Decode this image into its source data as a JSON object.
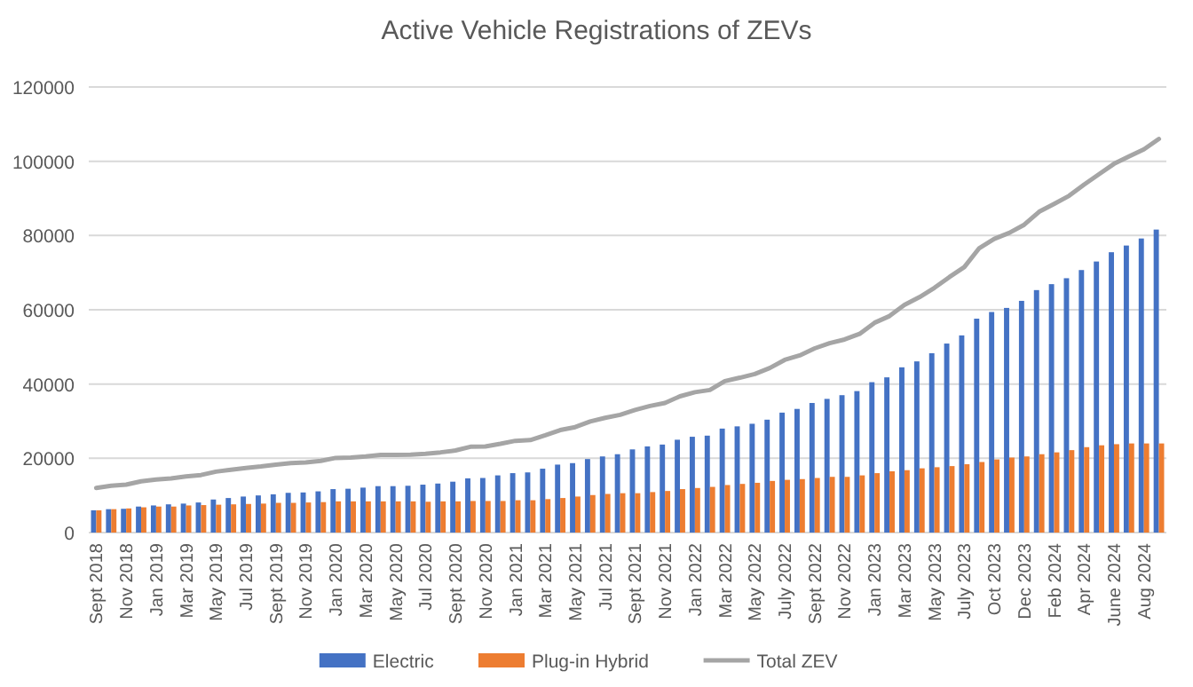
{
  "chart_data": {
    "type": "bar",
    "title": "Active Vehicle Registrations of ZEVs",
    "categories": [
      "Sept 2018",
      null,
      "Nov 2018",
      null,
      "Jan 2019",
      null,
      "Mar 2019",
      null,
      "May 2019",
      null,
      "Jul 2019",
      null,
      "Sept 2019",
      null,
      "Nov 2019",
      null,
      "Jan 2020",
      null,
      "Mar 2020",
      null,
      "May 2020",
      null,
      "Jul 2020",
      null,
      "Sept 2020",
      null,
      "Nov 2020",
      null,
      "Jan 2021",
      null,
      "Mar 2021",
      null,
      "May 2021",
      null,
      "Jul 2021",
      null,
      "Sept 2021",
      null,
      "Nov 2021",
      null,
      "Jan 2022",
      null,
      "Mar 2022",
      null,
      "May 2022",
      null,
      "July 2022",
      null,
      "Sept 2022",
      null,
      "Nov 2022",
      null,
      "Jan 2023",
      null,
      "Mar 2023",
      null,
      "May 2023",
      null,
      "July 2023",
      null,
      "Oct 2023",
      null,
      "Dec 2023",
      null,
      "Feb 2024",
      null,
      "Apr 2024",
      null,
      "June 2024",
      null,
      "Aug 2024",
      null
    ],
    "series": [
      {
        "name": "Electric",
        "color": "#4472c4",
        "values": [
          6000,
          6300,
          6400,
          7000,
          7300,
          7600,
          7800,
          8100,
          8900,
          9300,
          9700,
          10000,
          10300,
          10700,
          10800,
          11100,
          11700,
          11800,
          12100,
          12500,
          12500,
          12600,
          12900,
          13200,
          13700,
          14600,
          14700,
          15400,
          16000,
          16200,
          17200,
          18300,
          18700,
          19800,
          20500,
          21100,
          22400,
          23200,
          23700,
          25000,
          25800,
          26100,
          28000,
          28600,
          29300,
          30400,
          32300,
          33300,
          34900,
          36000,
          37000,
          38100,
          40500,
          41800,
          44500,
          46100,
          48300,
          50900,
          53100,
          57600,
          59400,
          60500,
          62400,
          65300,
          66900,
          68500,
          70700,
          73000,
          75500,
          77300,
          79200,
          81600
        ]
      },
      {
        "name": "Plug-in Hybrid",
        "color": "#ed7d31",
        "values": [
          6000,
          6300,
          6500,
          6800,
          7000,
          7000,
          7300,
          7400,
          7500,
          7600,
          7700,
          7800,
          8000,
          8000,
          8100,
          8200,
          8400,
          8400,
          8400,
          8400,
          8400,
          8400,
          8300,
          8400,
          8400,
          8500,
          8500,
          8500,
          8700,
          8700,
          9000,
          9300,
          9700,
          10100,
          10400,
          10600,
          10600,
          10900,
          11200,
          11700,
          12000,
          12300,
          12800,
          13100,
          13400,
          13900,
          14200,
          14400,
          14700,
          15000,
          15000,
          15400,
          16000,
          16500,
          16800,
          17300,
          17600,
          17900,
          18400,
          19000,
          19700,
          20200,
          20500,
          21100,
          21600,
          22200,
          23000,
          23500,
          23800,
          24000,
          24000,
          24000
        ]
      },
      {
        "name": "Total ZEV",
        "type": "line",
        "color": "#a5a5a5",
        "values": [
          12000,
          12600,
          12900,
          13800,
          14300,
          14600,
          15100,
          15500,
          16400,
          16900,
          17400,
          17800,
          18300,
          18700,
          18900,
          19300,
          20100,
          20200,
          20500,
          20900,
          20900,
          21000,
          21200,
          21600,
          22100,
          23100,
          23200,
          23900,
          24700,
          24900,
          26200,
          27600,
          28400,
          29900,
          30900,
          31700,
          33000,
          34100,
          34900,
          36700,
          37800,
          38400,
          40800,
          41700,
          42700,
          44300,
          46500,
          47700,
          49600,
          51000,
          52000,
          53500,
          56500,
          58300,
          61300,
          63400,
          65900,
          68800,
          71500,
          76600,
          79100,
          80700,
          82900,
          86400,
          88500,
          90700,
          93700,
          96500,
          99300,
          101300,
          103200,
          106000
        ]
      }
    ],
    "ylim": [
      0,
      120000
    ],
    "yticks": [
      0,
      20000,
      40000,
      60000,
      80000,
      100000,
      120000
    ],
    "grid": "y",
    "legend": "bottom",
    "marker": "none"
  }
}
